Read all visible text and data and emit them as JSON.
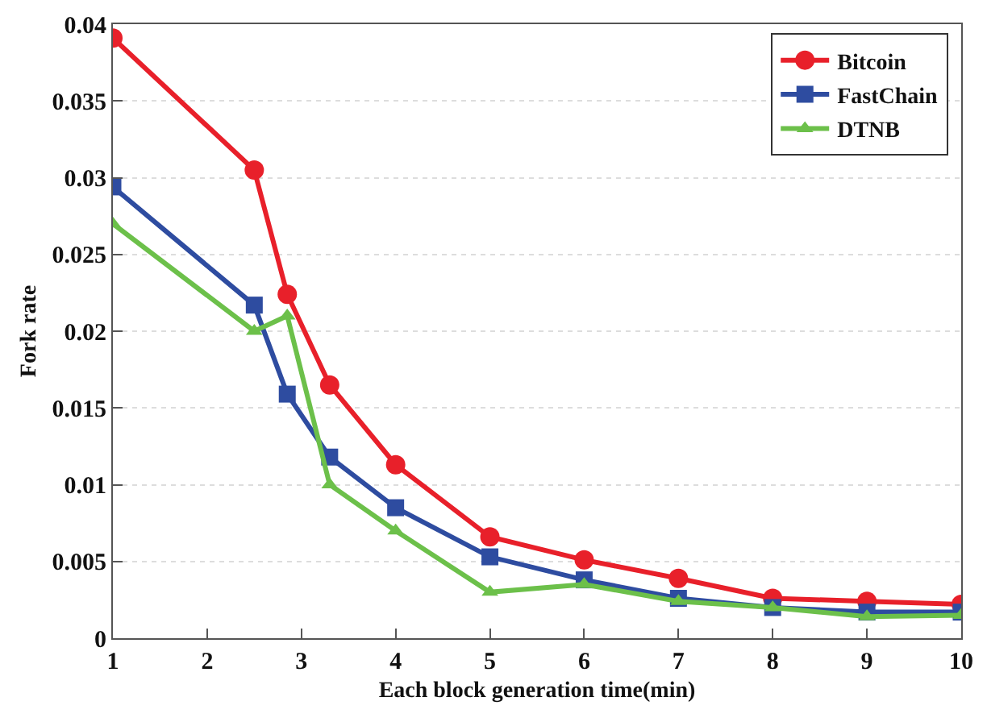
{
  "chart_data": {
    "type": "line",
    "xlabel": "Each block generation time(min)",
    "ylabel": "Fork rate",
    "x": [
      1,
      2.5,
      2.85,
      3.3,
      4,
      5,
      6,
      7,
      8,
      9,
      10
    ],
    "series": [
      {
        "name": "Bitcoin",
        "color": "#e8202a",
        "marker": "circle",
        "values": [
          0.0391,
          0.0305,
          0.0224,
          0.0165,
          0.0113,
          0.0066,
          0.0051,
          0.0039,
          0.0026,
          0.0024,
          0.0022
        ]
      },
      {
        "name": "FastChain",
        "color": "#2e4ca0",
        "marker": "square",
        "values": [
          0.0294,
          0.0217,
          0.0159,
          0.0118,
          0.0085,
          0.0053,
          0.0038,
          0.0026,
          0.002,
          0.0017,
          0.0017
        ]
      },
      {
        "name": "DTNB",
        "color": "#6cc04a",
        "marker": "triangle",
        "values": [
          0.027,
          0.02,
          0.021,
          0.01,
          0.007,
          0.003,
          0.0035,
          0.0024,
          0.002,
          0.0014,
          0.0015
        ]
      }
    ],
    "xlim": [
      1,
      10
    ],
    "xticks": [
      1,
      2,
      3,
      4,
      5,
      6,
      7,
      8,
      9,
      10
    ],
    "ylim": [
      0,
      0.04
    ],
    "yticks": [
      0,
      0.005,
      0.01,
      0.015,
      0.02,
      0.025,
      0.03,
      0.035,
      0.04
    ],
    "grid": "y",
    "legend": "top right",
    "line_style": "solid"
  }
}
